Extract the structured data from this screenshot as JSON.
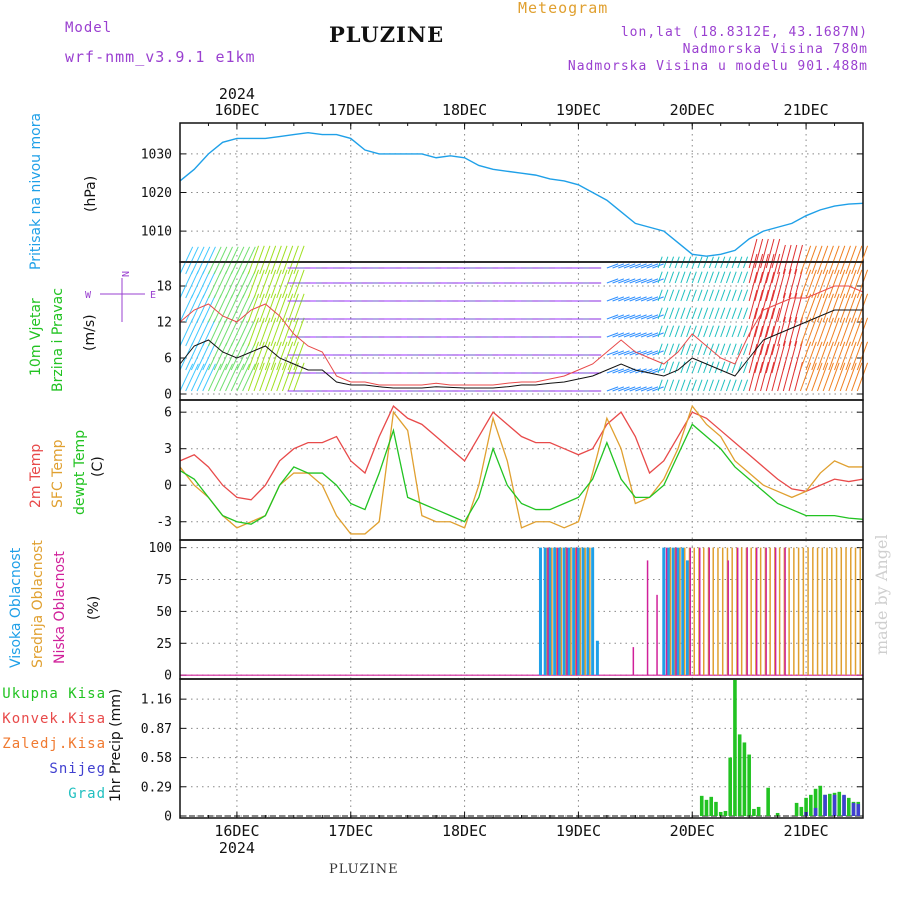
{
  "header": {
    "model_label": "Model",
    "model_name": "wrf-nmm_v3.9.1 e1km",
    "meteogram_label": "Meteogram",
    "station": "PLUZINE",
    "coords": "lon,lat (18.8312E, 43.1687N)",
    "altitude": "Nadmorska Visina 780m",
    "model_altitude": "Nadmorska Visina u modelu 901.488m",
    "footer_station": "PLUZINE",
    "watermark": "made by Angel"
  },
  "colors": {
    "pressure": "#1fa0e8",
    "temp2m": "#e84a4a",
    "sfc_temp": "#e0a030",
    "dewpoint": "#22c322",
    "high_cloud": "#1fa0e8",
    "mid_cloud": "#e0a030",
    "low_cloud": "#d0209a",
    "total_precip": "#22c322",
    "snow": "#4040d0",
    "hail": "#20c0c0",
    "header_purple": "#9a40d0",
    "header_gold": "#e0a030"
  },
  "chart_data": [
    {
      "type": "line",
      "panel": "pressure",
      "ylabel_lines": [
        "Pritisak na nivou mora"
      ],
      "unit": "(hPa)",
      "ylim": [
        1002,
        1038
      ],
      "yticks": [
        "1010",
        "1020",
        "1030"
      ],
      "grid": true,
      "x": [
        0,
        3,
        6,
        9,
        12,
        15,
        18,
        21,
        24,
        27,
        30,
        33,
        36,
        39,
        42,
        45,
        48,
        51,
        54,
        57,
        60,
        63,
        66,
        69,
        72,
        75,
        78,
        81,
        84,
        87,
        90,
        93,
        96,
        99,
        102,
        105,
        108,
        111,
        114,
        117,
        120,
        123,
        126,
        129,
        132,
        135,
        138,
        141,
        144
      ],
      "series": [
        {
          "values": [
            1023,
            1026,
            1030,
            1033,
            1034,
            1034,
            1034,
            1034.5,
            1035,
            1035.5,
            1035,
            1035,
            1034,
            1031,
            1030,
            1030,
            1030,
            1030,
            1029,
            1029.5,
            1029,
            1027,
            1026,
            1025.5,
            1025,
            1024.5,
            1023.5,
            1023,
            1022,
            1020,
            1018,
            1015,
            1012,
            1011,
            1010,
            1007,
            1004,
            1003.5,
            1004,
            1005,
            1008,
            1010,
            1011,
            1012,
            1014,
            1015.5,
            1016.5,
            1017,
            1017.2
          ]
        }
      ]
    },
    {
      "type": "line",
      "panel": "wind",
      "ylabel_lines": [
        "10m Vjetar",
        "Brzina i Pravac"
      ],
      "unit": "(m/s)",
      "legend_arrows": {
        "N": "N",
        "W": "W",
        "E": "E"
      },
      "ylim": [
        -1,
        22
      ],
      "yticks": [
        "0",
        "6",
        "12",
        "18"
      ],
      "grid": true,
      "x": [
        0,
        3,
        6,
        9,
        12,
        15,
        18,
        21,
        24,
        27,
        30,
        33,
        36,
        39,
        42,
        45,
        48,
        51,
        54,
        57,
        60,
        63,
        66,
        69,
        72,
        75,
        78,
        81,
        84,
        87,
        90,
        93,
        96,
        99,
        102,
        105,
        108,
        111,
        114,
        117,
        120,
        123,
        126,
        129,
        132,
        135,
        138,
        141,
        144
      ],
      "series": [
        {
          "name": "speed",
          "values": [
            5,
            8,
            9,
            7,
            6,
            7,
            8,
            6,
            5,
            4,
            4,
            2,
            1.5,
            1.5,
            1.2,
            1,
            1,
            1,
            1.2,
            1.1,
            1,
            1,
            1,
            1.2,
            1.5,
            1.5,
            1.8,
            2,
            2.5,
            3,
            4,
            5,
            4,
            3.5,
            3,
            4,
            6,
            5,
            4,
            3,
            6,
            9,
            10,
            11,
            12,
            13,
            14,
            14,
            14
          ]
        },
        {
          "name": "gust",
          "values": [
            12,
            14,
            15,
            13,
            12,
            14,
            15,
            13,
            10,
            8,
            7,
            3,
            2,
            2,
            1.5,
            1.5,
            1.5,
            1.5,
            1.8,
            1.5,
            1.5,
            1.5,
            1.5,
            1.8,
            2,
            2,
            2.5,
            3,
            4,
            5,
            7,
            9,
            7,
            6,
            5,
            7,
            10,
            8,
            6,
            5,
            10,
            14,
            15,
            16,
            16,
            17,
            18,
            18,
            17
          ]
        }
      ]
    },
    {
      "type": "line",
      "panel": "temperature",
      "ylabel_lines": [
        "2m Temp",
        "SFC Temp",
        "dewpt Temp"
      ],
      "unit": "(C)",
      "ylim": [
        -4.5,
        7
      ],
      "yticks": [
        "-3",
        "0",
        "3",
        "6"
      ],
      "grid": true,
      "x": [
        0,
        3,
        6,
        9,
        12,
        15,
        18,
        21,
        24,
        27,
        30,
        33,
        36,
        39,
        42,
        45,
        48,
        51,
        54,
        57,
        60,
        63,
        66,
        69,
        72,
        75,
        78,
        81,
        84,
        87,
        90,
        93,
        96,
        99,
        102,
        105,
        108,
        111,
        114,
        117,
        120,
        123,
        126,
        129,
        132,
        135,
        138,
        141,
        144
      ],
      "series": [
        {
          "name": "2m Temp",
          "values": [
            2,
            2.5,
            1.5,
            0,
            -1,
            -1.2,
            0,
            2,
            3,
            3.5,
            3.5,
            4,
            2,
            1,
            4,
            6.5,
            5.5,
            5,
            4,
            3,
            2,
            4,
            6,
            5,
            4,
            3.5,
            3.5,
            3,
            2.5,
            3,
            5,
            6,
            4,
            1,
            2,
            4,
            6,
            5.5,
            4.5,
            3.5,
            2.5,
            1.5,
            0.5,
            -0.3,
            -0.5,
            0,
            0.5,
            0.3,
            0.5
          ]
        },
        {
          "name": "SFC Temp",
          "values": [
            1.5,
            0,
            -1,
            -2.5,
            -3.5,
            -3,
            -2.5,
            0,
            1,
            1,
            0,
            -2.5,
            -4,
            -4,
            -3,
            6,
            4.5,
            -2.5,
            -3,
            -3,
            -3.5,
            0,
            5.5,
            2,
            -3.5,
            -3,
            -3,
            -3.5,
            -3,
            1,
            5.5,
            3,
            -1.5,
            -1,
            0.5,
            3,
            6.5,
            5,
            4,
            2,
            1,
            0,
            -0.5,
            -1,
            -0.5,
            1,
            2,
            1.5,
            1.5
          ]
        },
        {
          "name": "dewpt Temp",
          "values": [
            1.2,
            0.5,
            -1,
            -2.5,
            -3,
            -3.2,
            -2.5,
            0,
            1.5,
            1,
            1,
            0,
            -1.5,
            -2,
            1,
            4.5,
            -1,
            -1.5,
            -2,
            -2.5,
            -3,
            -1,
            3,
            0,
            -1.5,
            -2,
            -2,
            -1.5,
            -1,
            0.5,
            3.5,
            0.5,
            -1,
            -1,
            0,
            2.5,
            5,
            4,
            3,
            1.5,
            0.5,
            -0.5,
            -1.5,
            -2,
            -2.5,
            -2.5,
            -2.5,
            -2.7,
            -2.8
          ]
        }
      ]
    },
    {
      "type": "bar",
      "panel": "cloud",
      "ylabel_lines": [
        "Visoka Oblacnost",
        "Srednja Oblacnost",
        "Niska Oblacnost"
      ],
      "unit": "(%)",
      "ylim": [
        -3,
        106
      ],
      "yticks": [
        "0",
        "25",
        "50",
        "75",
        "100"
      ],
      "grid": true,
      "series": [
        {
          "name": "Visoka Oblacnost",
          "x": [
            76,
            77,
            78,
            79,
            80,
            81,
            82,
            83,
            84,
            85,
            86,
            87,
            88,
            102,
            103,
            104,
            105,
            106,
            107
          ],
          "values": [
            100,
            100,
            100,
            100,
            100,
            100,
            100,
            100,
            100,
            100,
            100,
            100,
            27,
            100,
            100,
            100,
            100,
            100,
            90
          ]
        },
        {
          "name": "Srednja Oblacnost",
          "x": [
            77,
            78,
            79,
            80,
            81,
            82,
            83,
            84,
            85,
            86,
            103,
            104,
            105,
            106,
            107,
            108,
            109,
            110,
            111,
            112,
            113,
            114,
            115,
            116,
            117,
            118,
            119,
            120,
            121,
            122,
            123,
            124,
            125,
            126,
            127,
            128,
            129,
            130,
            131,
            132,
            133,
            134,
            135,
            136,
            137,
            138,
            139,
            140,
            141,
            142,
            143
          ],
          "values": [
            100,
            100,
            100,
            100,
            100,
            100,
            100,
            100,
            100,
            100,
            100,
            100,
            100,
            100,
            100,
            100,
            100,
            100,
            100,
            100,
            100,
            100,
            100,
            100,
            100,
            100,
            100,
            100,
            100,
            100,
            100,
            100,
            100,
            100,
            100,
            100,
            100,
            100,
            100,
            100,
            100,
            100,
            100,
            100,
            100,
            100,
            100,
            100,
            100,
            100,
            100
          ]
        },
        {
          "name": "Niska Oblacnost",
          "x": [
            78,
            80,
            82,
            84,
            96,
            99,
            101,
            103,
            105,
            108,
            110,
            112,
            116,
            118,
            120,
            122,
            124,
            126,
            128
          ],
          "values": [
            100,
            100,
            100,
            100,
            22,
            90,
            63,
            100,
            100,
            100,
            100,
            100,
            90,
            100,
            100,
            100,
            100,
            100,
            100
          ]
        }
      ]
    },
    {
      "type": "bar",
      "panel": "precipitation",
      "legend": [
        "Ukupna Kisa",
        "Konvek.Kisa",
        "Zaledj.Kisa",
        "Snijeg",
        "Grad"
      ],
      "unit": "1hr Precip (mm)",
      "ylim": [
        -0.02,
        1.36
      ],
      "yticks": [
        "0",
        "0.29",
        "0.58",
        "0.87",
        "1.16"
      ],
      "grid": true,
      "series": [
        {
          "name": "Ukupna Kisa",
          "x": [
            110,
            111,
            112,
            113,
            114,
            115,
            116,
            117,
            118,
            119,
            120,
            121,
            122,
            124,
            126,
            130,
            131,
            132,
            133,
            134,
            135,
            136,
            137,
            138,
            139,
            140,
            141,
            142,
            143
          ],
          "values": [
            0.2,
            0.16,
            0.19,
            0.14,
            0.04,
            0.05,
            0.58,
            1.35,
            0.81,
            0.73,
            0.61,
            0.07,
            0.09,
            0.28,
            0.03,
            0.13,
            0.09,
            0.18,
            0.21,
            0.27,
            0.3,
            0.21,
            0.22,
            0.23,
            0.24,
            0.2,
            0.18,
            0.14,
            0.14
          ]
        },
        {
          "name": "Snijeg",
          "x": [
            132,
            134,
            136,
            138,
            140,
            142,
            143
          ],
          "values": [
            0.04,
            0.08,
            0.21,
            0.21,
            0.21,
            0.13,
            0.12
          ]
        }
      ]
    }
  ],
  "x_axis": {
    "top_labels": [
      "16DEC",
      "17DEC",
      "18DEC",
      "19DEC",
      "20DEC",
      "21DEC"
    ],
    "bottom_labels": [
      "16DEC",
      "17DEC",
      "18DEC",
      "19DEC",
      "20DEC",
      "21DEC"
    ],
    "label_hours": [
      12,
      36,
      60,
      84,
      108,
      132
    ],
    "year": "2024",
    "range_hours": [
      0,
      144
    ]
  }
}
